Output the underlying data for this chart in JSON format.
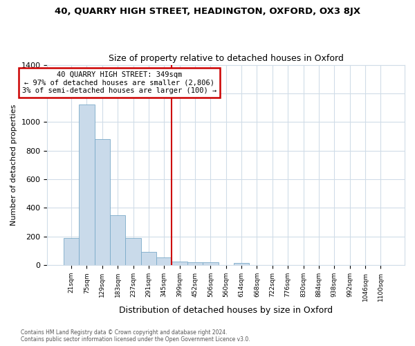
{
  "title1": "40, QUARRY HIGH STREET, HEADINGTON, OXFORD, OX3 8JX",
  "title2": "Size of property relative to detached houses in Oxford",
  "xlabel": "Distribution of detached houses by size in Oxford",
  "ylabel": "Number of detached properties",
  "categories": [
    "21sqm",
    "75sqm",
    "129sqm",
    "183sqm",
    "237sqm",
    "291sqm",
    "345sqm",
    "399sqm",
    "452sqm",
    "506sqm",
    "560sqm",
    "614sqm",
    "668sqm",
    "722sqm",
    "776sqm",
    "830sqm",
    "884sqm",
    "938sqm",
    "992sqm",
    "1046sqm",
    "1100sqm"
  ],
  "values": [
    190,
    1120,
    880,
    350,
    190,
    95,
    55,
    25,
    20,
    20,
    0,
    15,
    0,
    0,
    0,
    0,
    0,
    0,
    0,
    0,
    0
  ],
  "bar_color": "#c9daea",
  "bar_edge_color": "#7aaac8",
  "property_line_color": "#cc0000",
  "annotation_line1": "40 QUARRY HIGH STREET: 349sqm",
  "annotation_line2": "← 97% of detached houses are smaller (2,806)",
  "annotation_line3": "3% of semi-detached houses are larger (100) →",
  "ylim_max": 1400,
  "yticks": [
    0,
    200,
    400,
    600,
    800,
    1000,
    1200,
    1400
  ],
  "footnote1": "Contains HM Land Registry data © Crown copyright and database right 2024.",
  "footnote2": "Contains public sector information licensed under the Open Government Licence v3.0.",
  "background_color": "#ffffff",
  "grid_color": "#d0dce8"
}
